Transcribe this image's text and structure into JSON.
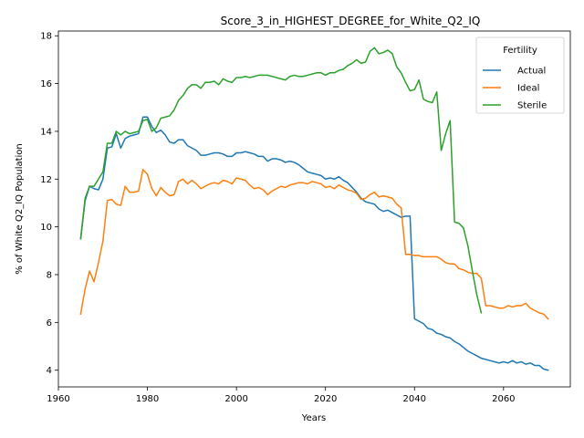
{
  "chart_data": {
    "type": "line",
    "title": "Score_3_in_HIGHEST_DEGREE_for_White_Q2_IQ",
    "xlabel": "Years",
    "ylabel": "% of White Q2_IQ Population",
    "xlim": [
      1960,
      2075
    ],
    "ylim": [
      3.3,
      18.2
    ],
    "xticks": [
      1960,
      1980,
      2000,
      2020,
      2040,
      2060
    ],
    "yticks": [
      4,
      6,
      8,
      10,
      12,
      14,
      16,
      18
    ],
    "grid": false,
    "legend": {
      "title": "Fertility",
      "placement": "top-right"
    },
    "series": [
      {
        "name": "Actual",
        "color": "#1f77b4",
        "points": [
          [
            1965,
            9.5
          ],
          [
            1966,
            11.1
          ],
          [
            1967,
            11.7
          ],
          [
            1968,
            11.6
          ],
          [
            1969,
            11.55
          ],
          [
            1970,
            12.0
          ],
          [
            1971,
            13.3
          ],
          [
            1972,
            13.35
          ],
          [
            1973,
            13.9
          ],
          [
            1974,
            13.3
          ],
          [
            1975,
            13.7
          ],
          [
            1976,
            13.8
          ],
          [
            1977,
            13.85
          ],
          [
            1978,
            13.9
          ],
          [
            1979,
            14.6
          ],
          [
            1980,
            14.6
          ],
          [
            1981,
            14.2
          ],
          [
            1982,
            13.95
          ],
          [
            1983,
            14.05
          ],
          [
            1984,
            13.85
          ],
          [
            1985,
            13.55
          ],
          [
            1986,
            13.5
          ],
          [
            1987,
            13.65
          ],
          [
            1988,
            13.65
          ],
          [
            1989,
            13.4
          ],
          [
            1990,
            13.3
          ],
          [
            1991,
            13.2
          ],
          [
            1992,
            13.0
          ],
          [
            1993,
            13.0
          ],
          [
            1994,
            13.05
          ],
          [
            1995,
            13.1
          ],
          [
            1996,
            13.1
          ],
          [
            1997,
            13.05
          ],
          [
            1998,
            12.95
          ],
          [
            1999,
            12.95
          ],
          [
            2000,
            13.1
          ],
          [
            2001,
            13.1
          ],
          [
            2002,
            13.15
          ],
          [
            2003,
            13.1
          ],
          [
            2004,
            13.05
          ],
          [
            2005,
            12.95
          ],
          [
            2006,
            12.95
          ],
          [
            2007,
            12.75
          ],
          [
            2008,
            12.85
          ],
          [
            2009,
            12.85
          ],
          [
            2010,
            12.8
          ],
          [
            2011,
            12.7
          ],
          [
            2012,
            12.75
          ],
          [
            2013,
            12.7
          ],
          [
            2014,
            12.6
          ],
          [
            2015,
            12.45
          ],
          [
            2016,
            12.3
          ],
          [
            2017,
            12.25
          ],
          [
            2018,
            12.2
          ],
          [
            2019,
            12.15
          ],
          [
            2020,
            12.0
          ],
          [
            2021,
            12.05
          ],
          [
            2022,
            12.0
          ],
          [
            2023,
            12.1
          ],
          [
            2024,
            11.95
          ],
          [
            2025,
            11.85
          ],
          [
            2026,
            11.65
          ],
          [
            2027,
            11.45
          ],
          [
            2028,
            11.2
          ],
          [
            2029,
            11.05
          ],
          [
            2030,
            11.0
          ],
          [
            2031,
            10.95
          ],
          [
            2032,
            10.75
          ],
          [
            2033,
            10.65
          ],
          [
            2034,
            10.7
          ],
          [
            2035,
            10.6
          ],
          [
            2036,
            10.5
          ],
          [
            2037,
            10.4
          ],
          [
            2038,
            10.45
          ],
          [
            2039,
            10.45
          ],
          [
            2040,
            6.15
          ],
          [
            2041,
            6.05
          ],
          [
            2042,
            5.95
          ],
          [
            2043,
            5.75
          ],
          [
            2044,
            5.7
          ],
          [
            2045,
            5.55
          ],
          [
            2046,
            5.5
          ],
          [
            2047,
            5.4
          ],
          [
            2048,
            5.35
          ],
          [
            2049,
            5.2
          ],
          [
            2050,
            5.1
          ],
          [
            2051,
            4.95
          ],
          [
            2052,
            4.8
          ],
          [
            2053,
            4.7
          ],
          [
            2054,
            4.6
          ],
          [
            2055,
            4.5
          ],
          [
            2056,
            4.45
          ],
          [
            2057,
            4.4
          ],
          [
            2058,
            4.35
          ],
          [
            2059,
            4.3
          ],
          [
            2060,
            4.35
          ],
          [
            2061,
            4.3
          ],
          [
            2062,
            4.4
          ],
          [
            2063,
            4.3
          ],
          [
            2064,
            4.35
          ],
          [
            2065,
            4.25
          ],
          [
            2066,
            4.3
          ],
          [
            2067,
            4.2
          ],
          [
            2068,
            4.2
          ],
          [
            2069,
            4.05
          ],
          [
            2070,
            4.0
          ]
        ]
      },
      {
        "name": "Ideal",
        "color": "#ff7f0e",
        "points": [
          [
            1965,
            6.35
          ],
          [
            1966,
            7.4
          ],
          [
            1967,
            8.15
          ],
          [
            1968,
            7.7
          ],
          [
            1969,
            8.5
          ],
          [
            1970,
            9.4
          ],
          [
            1971,
            11.1
          ],
          [
            1972,
            11.15
          ],
          [
            1973,
            10.95
          ],
          [
            1974,
            10.9
          ],
          [
            1975,
            11.7
          ],
          [
            1976,
            11.45
          ],
          [
            1977,
            11.45
          ],
          [
            1978,
            11.5
          ],
          [
            1979,
            12.4
          ],
          [
            1980,
            12.2
          ],
          [
            1981,
            11.6
          ],
          [
            1982,
            11.3
          ],
          [
            1983,
            11.65
          ],
          [
            1984,
            11.45
          ],
          [
            1985,
            11.3
          ],
          [
            1986,
            11.35
          ],
          [
            1987,
            11.9
          ],
          [
            1988,
            12.0
          ],
          [
            1989,
            11.8
          ],
          [
            1990,
            11.95
          ],
          [
            1991,
            11.8
          ],
          [
            1992,
            11.6
          ],
          [
            1993,
            11.7
          ],
          [
            1994,
            11.8
          ],
          [
            1995,
            11.85
          ],
          [
            1996,
            11.8
          ],
          [
            1997,
            11.95
          ],
          [
            1998,
            11.9
          ],
          [
            1999,
            11.8
          ],
          [
            2000,
            12.05
          ],
          [
            2001,
            12.0
          ],
          [
            2002,
            11.95
          ],
          [
            2003,
            11.75
          ],
          [
            2004,
            11.6
          ],
          [
            2005,
            11.65
          ],
          [
            2006,
            11.55
          ],
          [
            2007,
            11.35
          ],
          [
            2008,
            11.5
          ],
          [
            2009,
            11.6
          ],
          [
            2010,
            11.7
          ],
          [
            2011,
            11.65
          ],
          [
            2012,
            11.75
          ],
          [
            2013,
            11.8
          ],
          [
            2014,
            11.85
          ],
          [
            2015,
            11.85
          ],
          [
            2016,
            11.8
          ],
          [
            2017,
            11.9
          ],
          [
            2018,
            11.85
          ],
          [
            2019,
            11.8
          ],
          [
            2020,
            11.65
          ],
          [
            2021,
            11.7
          ],
          [
            2022,
            11.6
          ],
          [
            2023,
            11.75
          ],
          [
            2024,
            11.65
          ],
          [
            2025,
            11.55
          ],
          [
            2026,
            11.5
          ],
          [
            2027,
            11.4
          ],
          [
            2028,
            11.15
          ],
          [
            2029,
            11.2
          ],
          [
            2030,
            11.35
          ],
          [
            2031,
            11.45
          ],
          [
            2032,
            11.25
          ],
          [
            2033,
            11.3
          ],
          [
            2034,
            11.25
          ],
          [
            2035,
            11.2
          ],
          [
            2036,
            10.95
          ],
          [
            2037,
            10.8
          ],
          [
            2038,
            8.85
          ],
          [
            2039,
            8.85
          ],
          [
            2040,
            8.8
          ],
          [
            2041,
            8.8
          ],
          [
            2042,
            8.75
          ],
          [
            2043,
            8.75
          ],
          [
            2044,
            8.75
          ],
          [
            2045,
            8.75
          ],
          [
            2046,
            8.65
          ],
          [
            2047,
            8.5
          ],
          [
            2048,
            8.45
          ],
          [
            2049,
            8.45
          ],
          [
            2050,
            8.25
          ],
          [
            2051,
            8.2
          ],
          [
            2052,
            8.1
          ],
          [
            2053,
            8.05
          ],
          [
            2054,
            8.05
          ],
          [
            2055,
            7.85
          ],
          [
            2056,
            6.7
          ],
          [
            2057,
            6.7
          ],
          [
            2058,
            6.65
          ],
          [
            2059,
            6.6
          ],
          [
            2060,
            6.6
          ],
          [
            2061,
            6.7
          ],
          [
            2062,
            6.65
          ],
          [
            2063,
            6.7
          ],
          [
            2064,
            6.7
          ],
          [
            2065,
            6.8
          ],
          [
            2066,
            6.6
          ],
          [
            2067,
            6.5
          ],
          [
            2068,
            6.4
          ],
          [
            2069,
            6.35
          ],
          [
            2070,
            6.15
          ]
        ]
      },
      {
        "name": "Sterile",
        "color": "#2ca02c",
        "points": [
          [
            1965,
            9.5
          ],
          [
            1966,
            11.2
          ],
          [
            1967,
            11.7
          ],
          [
            1968,
            11.7
          ],
          [
            1969,
            12.0
          ],
          [
            1970,
            12.3
          ],
          [
            1971,
            13.5
          ],
          [
            1972,
            13.5
          ],
          [
            1973,
            14.0
          ],
          [
            1974,
            13.85
          ],
          [
            1975,
            14.0
          ],
          [
            1976,
            13.9
          ],
          [
            1977,
            13.95
          ],
          [
            1978,
            14.0
          ],
          [
            1979,
            14.45
          ],
          [
            1980,
            14.5
          ],
          [
            1981,
            14.0
          ],
          [
            1982,
            14.15
          ],
          [
            1983,
            14.55
          ],
          [
            1984,
            14.6
          ],
          [
            1985,
            14.65
          ],
          [
            1986,
            14.9
          ],
          [
            1987,
            15.3
          ],
          [
            1988,
            15.5
          ],
          [
            1989,
            15.8
          ],
          [
            1990,
            15.95
          ],
          [
            1991,
            15.95
          ],
          [
            1992,
            15.8
          ],
          [
            1993,
            16.05
          ],
          [
            1994,
            16.05
          ],
          [
            1995,
            16.1
          ],
          [
            1996,
            15.95
          ],
          [
            1997,
            16.2
          ],
          [
            1998,
            16.1
          ],
          [
            1999,
            16.05
          ],
          [
            2000,
            16.25
          ],
          [
            2001,
            16.25
          ],
          [
            2002,
            16.3
          ],
          [
            2003,
            16.25
          ],
          [
            2004,
            16.3
          ],
          [
            2005,
            16.35
          ],
          [
            2006,
            16.35
          ],
          [
            2007,
            16.35
          ],
          [
            2008,
            16.3
          ],
          [
            2009,
            16.25
          ],
          [
            2010,
            16.2
          ],
          [
            2011,
            16.15
          ],
          [
            2012,
            16.3
          ],
          [
            2013,
            16.35
          ],
          [
            2014,
            16.3
          ],
          [
            2015,
            16.3
          ],
          [
            2016,
            16.35
          ],
          [
            2017,
            16.4
          ],
          [
            2018,
            16.45
          ],
          [
            2019,
            16.45
          ],
          [
            2020,
            16.35
          ],
          [
            2021,
            16.45
          ],
          [
            2022,
            16.45
          ],
          [
            2023,
            16.55
          ],
          [
            2024,
            16.6
          ],
          [
            2025,
            16.75
          ],
          [
            2026,
            16.85
          ],
          [
            2027,
            17.0
          ],
          [
            2028,
            16.85
          ],
          [
            2029,
            16.9
          ],
          [
            2030,
            17.35
          ],
          [
            2031,
            17.5
          ],
          [
            2032,
            17.25
          ],
          [
            2033,
            17.3
          ],
          [
            2034,
            17.4
          ],
          [
            2035,
            17.25
          ],
          [
            2036,
            16.7
          ],
          [
            2037,
            16.45
          ],
          [
            2038,
            16.05
          ],
          [
            2039,
            15.7
          ],
          [
            2040,
            15.75
          ],
          [
            2041,
            16.15
          ],
          [
            2042,
            15.35
          ],
          [
            2043,
            15.25
          ],
          [
            2044,
            15.2
          ],
          [
            2045,
            15.65
          ],
          [
            2046,
            13.2
          ],
          [
            2047,
            13.9
          ],
          [
            2048,
            14.45
          ],
          [
            2049,
            10.2
          ],
          [
            2050,
            10.15
          ],
          [
            2051,
            9.95
          ],
          [
            2052,
            9.2
          ],
          [
            2053,
            8.15
          ],
          [
            2054,
            7.15
          ],
          [
            2055,
            6.4
          ]
        ]
      }
    ]
  }
}
